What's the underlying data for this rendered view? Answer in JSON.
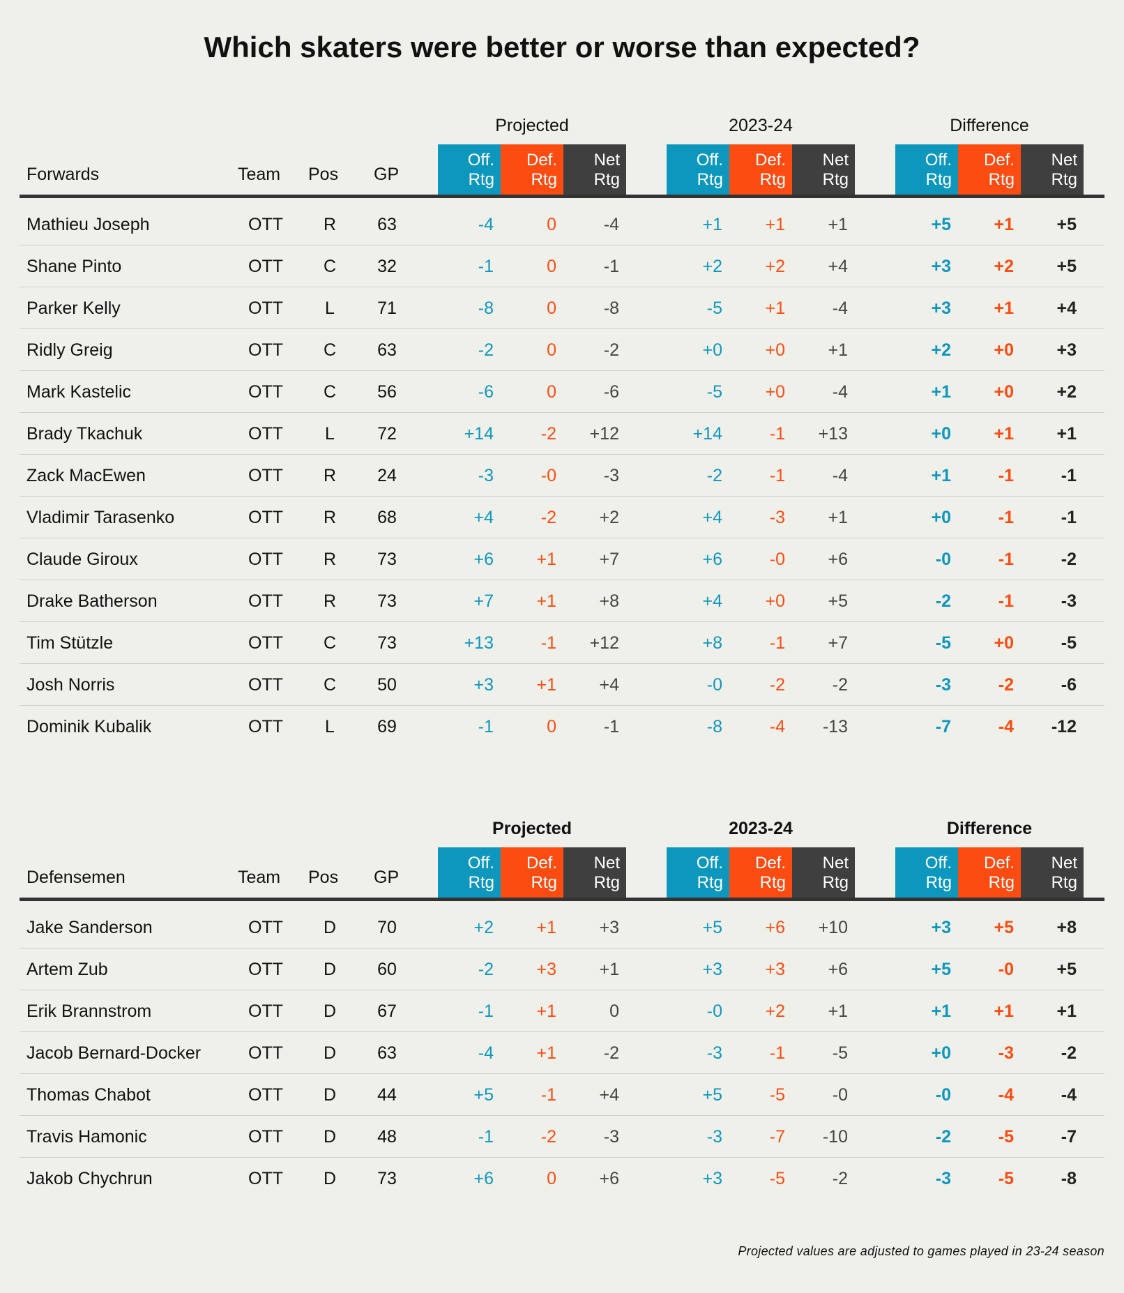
{
  "title": "Which skaters were better or worse than expected?",
  "footnote": "Projected values are adjusted to games played in 23-24 season",
  "colors": {
    "offense": "#0e97bd",
    "defense": "#fc4c12",
    "net": "#3f3f3f",
    "background": "#f0f0eb"
  },
  "chart_data": [
    {
      "type": "table",
      "title": "Forwards",
      "group_headers": [
        "Projected",
        "2023-24",
        "Difference"
      ],
      "column_headers": {
        "name": "Forwards",
        "team": "Team",
        "pos": "Pos",
        "gp": "GP",
        "off": [
          "Off.",
          "Rtg"
        ],
        "def": [
          "Def.",
          "Rtg"
        ],
        "net": [
          "Net",
          "Rtg"
        ]
      },
      "rows": [
        {
          "name": "Mathieu Joseph",
          "team": "OTT",
          "pos": "R",
          "gp": "63",
          "proj": [
            "-4",
            "0",
            "-4"
          ],
          "actual": [
            "+1",
            "+1",
            "+1"
          ],
          "diff": [
            "+5",
            "+1",
            "+5"
          ]
        },
        {
          "name": "Shane Pinto",
          "team": "OTT",
          "pos": "C",
          "gp": "32",
          "proj": [
            "-1",
            "0",
            "-1"
          ],
          "actual": [
            "+2",
            "+2",
            "+4"
          ],
          "diff": [
            "+3",
            "+2",
            "+5"
          ]
        },
        {
          "name": "Parker Kelly",
          "team": "OTT",
          "pos": "L",
          "gp": "71",
          "proj": [
            "-8",
            "0",
            "-8"
          ],
          "actual": [
            "-5",
            "+1",
            "-4"
          ],
          "diff": [
            "+3",
            "+1",
            "+4"
          ]
        },
        {
          "name": "Ridly Greig",
          "team": "OTT",
          "pos": "C",
          "gp": "63",
          "proj": [
            "-2",
            "0",
            "-2"
          ],
          "actual": [
            "+0",
            "+0",
            "+1"
          ],
          "diff": [
            "+2",
            "+0",
            "+3"
          ]
        },
        {
          "name": "Mark Kastelic",
          "team": "OTT",
          "pos": "C",
          "gp": "56",
          "proj": [
            "-6",
            "0",
            "-6"
          ],
          "actual": [
            "-5",
            "+0",
            "-4"
          ],
          "diff": [
            "+1",
            "+0",
            "+2"
          ]
        },
        {
          "name": "Brady Tkachuk",
          "team": "OTT",
          "pos": "L",
          "gp": "72",
          "proj": [
            "+14",
            "-2",
            "+12"
          ],
          "actual": [
            "+14",
            "-1",
            "+13"
          ],
          "diff": [
            "+0",
            "+1",
            "+1"
          ]
        },
        {
          "name": "Zack MacEwen",
          "team": "OTT",
          "pos": "R",
          "gp": "24",
          "proj": [
            "-3",
            "-0",
            "-3"
          ],
          "actual": [
            "-2",
            "-1",
            "-4"
          ],
          "diff": [
            "+1",
            "-1",
            "-1"
          ]
        },
        {
          "name": "Vladimir Tarasenko",
          "team": "OTT",
          "pos": "R",
          "gp": "68",
          "proj": [
            "+4",
            "-2",
            "+2"
          ],
          "actual": [
            "+4",
            "-3",
            "+1"
          ],
          "diff": [
            "+0",
            "-1",
            "-1"
          ]
        },
        {
          "name": "Claude Giroux",
          "team": "OTT",
          "pos": "R",
          "gp": "73",
          "proj": [
            "+6",
            "+1",
            "+7"
          ],
          "actual": [
            "+6",
            "-0",
            "+6"
          ],
          "diff": [
            "-0",
            "-1",
            "-2"
          ]
        },
        {
          "name": "Drake Batherson",
          "team": "OTT",
          "pos": "R",
          "gp": "73",
          "proj": [
            "+7",
            "+1",
            "+8"
          ],
          "actual": [
            "+4",
            "+0",
            "+5"
          ],
          "diff": [
            "-2",
            "-1",
            "-3"
          ]
        },
        {
          "name": "Tim Stützle",
          "team": "OTT",
          "pos": "C",
          "gp": "73",
          "proj": [
            "+13",
            "-1",
            "+12"
          ],
          "actual": [
            "+8",
            "-1",
            "+7"
          ],
          "diff": [
            "-5",
            "+0",
            "-5"
          ]
        },
        {
          "name": "Josh Norris",
          "team": "OTT",
          "pos": "C",
          "gp": "50",
          "proj": [
            "+3",
            "+1",
            "+4"
          ],
          "actual": [
            "-0",
            "-2",
            "-2"
          ],
          "diff": [
            "-3",
            "-2",
            "-6"
          ]
        },
        {
          "name": "Dominik Kubalik",
          "team": "OTT",
          "pos": "L",
          "gp": "69",
          "proj": [
            "-1",
            "0",
            "-1"
          ],
          "actual": [
            "-8",
            "-4",
            "-13"
          ],
          "diff": [
            "-7",
            "-4",
            "-12"
          ]
        }
      ]
    },
    {
      "type": "table",
      "title": "Defensemen",
      "group_headers": [
        "Projected",
        "2023-24",
        "Difference"
      ],
      "column_headers": {
        "name": "Defensemen",
        "team": "Team",
        "pos": "Pos",
        "gp": "GP",
        "off": [
          "Off.",
          "Rtg"
        ],
        "def": [
          "Def.",
          "Rtg"
        ],
        "net": [
          "Net",
          "Rtg"
        ]
      },
      "rows": [
        {
          "name": "Jake Sanderson",
          "team": "OTT",
          "pos": "D",
          "gp": "70",
          "proj": [
            "+2",
            "+1",
            "+3"
          ],
          "actual": [
            "+5",
            "+6",
            "+10"
          ],
          "diff": [
            "+3",
            "+5",
            "+8"
          ]
        },
        {
          "name": "Artem Zub",
          "team": "OTT",
          "pos": "D",
          "gp": "60",
          "proj": [
            "-2",
            "+3",
            "+1"
          ],
          "actual": [
            "+3",
            "+3",
            "+6"
          ],
          "diff": [
            "+5",
            "-0",
            "+5"
          ]
        },
        {
          "name": "Erik Brannstrom",
          "team": "OTT",
          "pos": "D",
          "gp": "67",
          "proj": [
            "-1",
            "+1",
            "0"
          ],
          "actual": [
            "-0",
            "+2",
            "+1"
          ],
          "diff": [
            "+1",
            "+1",
            "+1"
          ]
        },
        {
          "name": "Jacob Bernard-Docker",
          "team": "OTT",
          "pos": "D",
          "gp": "63",
          "proj": [
            "-4",
            "+1",
            "-2"
          ],
          "actual": [
            "-3",
            "-1",
            "-5"
          ],
          "diff": [
            "+0",
            "-3",
            "-2"
          ]
        },
        {
          "name": "Thomas Chabot",
          "team": "OTT",
          "pos": "D",
          "gp": "44",
          "proj": [
            "+5",
            "-1",
            "+4"
          ],
          "actual": [
            "+5",
            "-5",
            "-0"
          ],
          "diff": [
            "-0",
            "-4",
            "-4"
          ]
        },
        {
          "name": "Travis Hamonic",
          "team": "OTT",
          "pos": "D",
          "gp": "48",
          "proj": [
            "-1",
            "-2",
            "-3"
          ],
          "actual": [
            "-3",
            "-7",
            "-10"
          ],
          "diff": [
            "-2",
            "-5",
            "-7"
          ]
        },
        {
          "name": "Jakob Chychrun",
          "team": "OTT",
          "pos": "D",
          "gp": "73",
          "proj": [
            "+6",
            "0",
            "+6"
          ],
          "actual": [
            "+3",
            "-5",
            "-2"
          ],
          "diff": [
            "-3",
            "-5",
            "-8"
          ]
        }
      ]
    }
  ]
}
